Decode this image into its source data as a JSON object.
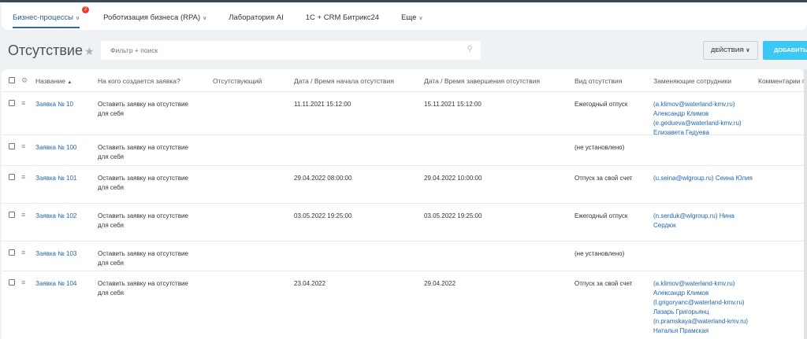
{
  "nav": {
    "tabs": [
      {
        "label": "Бизнес-процессы",
        "badge": "2",
        "dropdown": true,
        "active": true
      },
      {
        "label": "Роботизация бизнеса (RPA)",
        "dropdown": true
      },
      {
        "label": "Лаборатория AI"
      },
      {
        "label": "1С + CRM Битрикс24"
      },
      {
        "label": "Еще",
        "dropdown": true
      }
    ]
  },
  "page": {
    "title": "Отсутствие",
    "filter_placeholder": "Фильтр + поиск",
    "actions_label": "ДЕЙСТВИЯ",
    "add_label": "ДОБАВИТЬ"
  },
  "table": {
    "columns": [
      "Название",
      "На кого создается заявка?",
      "Отсутствующий",
      "Дата / Время начала отсутствия",
      "Дата / Время завершения отсутствия",
      "Вид отсутствия",
      "Заменяющие сотрудники",
      "Комментарии п"
    ],
    "rows": [
      {
        "name": "Заявка № 10",
        "for": "Оставить заявку на отсутствие для себя",
        "absent": "",
        "start": "11.11.2021 15:12:00",
        "end": "15.11.2021 15:12:00",
        "type": "Ежегодный отпуск",
        "replacements": "(a.klimov@waterland-kmv.ru) Александр Климов (e.gedueva@waterland-kmv.ru) Елизавета Гедуева",
        "comment": ""
      },
      {
        "name": "Заявка № 100",
        "for": "Оставить заявку на отсутствие для себя",
        "absent": "",
        "start": "",
        "end": "",
        "type": "(не установлено)",
        "replacements": "",
        "comment": ""
      },
      {
        "name": "Заявка № 101",
        "for": "Оставить заявку на отсутствие для себя",
        "absent": "",
        "start": "29.04.2022 08:00:00",
        "end": "29.04.2022 10:00:00",
        "type": "Отпуск за свой счет",
        "replacements": "(u.seina@wlgroup.ru) Сеина Юлия",
        "comment": ""
      },
      {
        "name": "Заявка № 102",
        "for": "Оставить заявку на отсутствие для себя",
        "absent": "",
        "start": "03.05.2022 19:25:00",
        "end": "03.05.2022 19:25:00",
        "type": "Ежегодный отпуск",
        "replacements": "(n.serduk@wlgroup.ru) Нина Сердюк",
        "comment": ""
      },
      {
        "name": "Заявка № 103",
        "for": "Оставить заявку на отсутствие для себя",
        "absent": "",
        "start": "",
        "end": "",
        "type": "(не установлено)",
        "replacements": "",
        "comment": ""
      },
      {
        "name": "Заявка № 104",
        "for": "Оставить заявку на отсутствие для себя",
        "absent": "",
        "start": "23.04.2022",
        "end": "29.04.2022",
        "type": "Отпуск за свой счет",
        "replacements": "(a.klimov@waterland-kmv.ru) Александр Климов (l.grigoryanc@waterland-kmv.ru) Лазарь Григорьянц (n.pramskaya@waterland-kmv.ru) Наталья Прамская",
        "comment": ""
      }
    ]
  },
  "colors": {
    "accent": "#3bc8f5",
    "link": "#2067b0",
    "badge": "#e0402b"
  }
}
